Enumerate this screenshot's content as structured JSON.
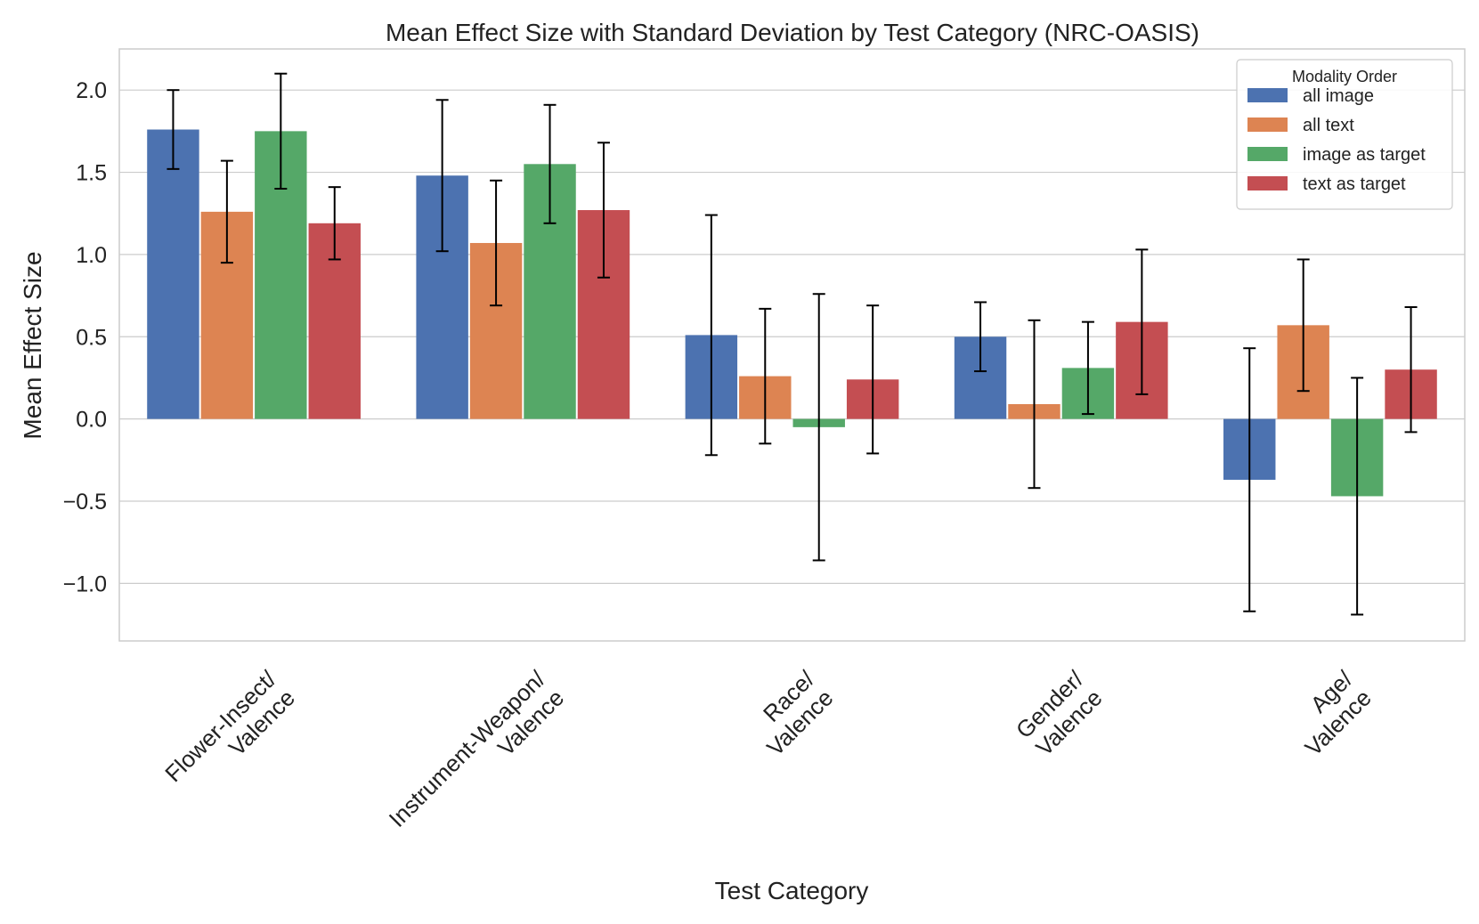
{
  "chart_data": {
    "type": "bar",
    "title": "Mean Effect Size with Standard Deviation by Test Category (NRC-OASIS)",
    "xlabel": "Test Category",
    "ylabel": "Mean Effect Size",
    "ylim": [
      -1.35,
      2.25
    ],
    "yticks": [
      -1.0,
      -0.5,
      0.0,
      0.5,
      1.0,
      1.5,
      2.0
    ],
    "ytick_labels": [
      "−1.0",
      "−0.5",
      "0.0",
      "0.5",
      "1.0",
      "1.5",
      "2.0"
    ],
    "grid": true,
    "categories": [
      {
        "line1": "Flower-Insect/",
        "line2": "Valence"
      },
      {
        "line1": "Instrument-Weapon/",
        "line2": "Valence"
      },
      {
        "line1": "Race/",
        "line2": "Valence"
      },
      {
        "line1": "Gender/",
        "line2": "Valence"
      },
      {
        "line1": "Age/",
        "line2": "Valence"
      }
    ],
    "legend": {
      "title": "Modality Order",
      "position": "top-right"
    },
    "series": [
      {
        "name": "all image",
        "color": "#4c72b0",
        "values": [
          1.76,
          1.48,
          0.51,
          0.5,
          -0.37
        ],
        "std": [
          0.24,
          0.46,
          0.73,
          0.21,
          0.8
        ]
      },
      {
        "name": "all text",
        "color": "#dd8452",
        "values": [
          1.26,
          1.07,
          0.26,
          0.09,
          0.57
        ],
        "std": [
          0.31,
          0.38,
          0.41,
          0.51,
          0.4
        ]
      },
      {
        "name": "image as target",
        "color": "#55a868",
        "values": [
          1.75,
          1.55,
          -0.05,
          0.31,
          -0.47
        ],
        "std": [
          0.35,
          0.36,
          0.81,
          0.28,
          0.72
        ]
      },
      {
        "name": "text as target",
        "color": "#c44e52",
        "values": [
          1.19,
          1.27,
          0.24,
          0.59,
          0.3
        ],
        "std": [
          0.22,
          0.41,
          0.45,
          0.44,
          0.38
        ]
      }
    ]
  }
}
